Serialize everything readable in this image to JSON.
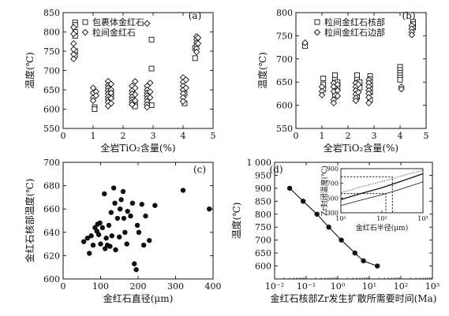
{
  "chart_data": [
    {
      "id": "a",
      "type": "scatter",
      "panel_label": "(a)",
      "xlabel": "全岩TiO₂含量(%)",
      "ylabel": "温度(℃)",
      "xlim": [
        0,
        5
      ],
      "ylim": [
        550,
        850
      ],
      "xticks": [
        0,
        1,
        2,
        3,
        4,
        5
      ],
      "yticks": [
        550,
        600,
        650,
        700,
        750,
        800,
        850
      ],
      "legend_position": "top-left",
      "series": [
        {
          "name": "包裹体金红石",
          "marker": "square",
          "points": [
            [
              0.4,
              825
            ],
            [
              0.4,
              818
            ],
            [
              0.4,
              800
            ],
            [
              0.4,
              790
            ],
            [
              0.4,
              750
            ],
            [
              0.4,
              740
            ],
            [
              1.05,
              605
            ],
            [
              1.05,
              600
            ],
            [
              1.6,
              640
            ],
            [
              1.6,
              632
            ],
            [
              2.4,
              612
            ],
            [
              2.4,
              607
            ],
            [
              2.95,
              780
            ],
            [
              2.95,
              705
            ],
            [
              2.95,
              610
            ],
            [
              4.05,
              640
            ],
            [
              4.05,
              615
            ],
            [
              4.4,
              758
            ],
            [
              4.4,
              732
            ]
          ]
        },
        {
          "name": "粒间金红石",
          "marker": "diamond",
          "points": [
            [
              0.35,
              812
            ],
            [
              0.35,
              795
            ],
            [
              0.35,
              770
            ],
            [
              0.35,
              755
            ],
            [
              0.35,
              742
            ],
            [
              0.35,
              730
            ],
            [
              1.0,
              655
            ],
            [
              1.0,
              642
            ],
            [
              1.0,
              630
            ],
            [
              1.0,
              622
            ],
            [
              1.1,
              645
            ],
            [
              1.1,
              635
            ],
            [
              1.5,
              672
            ],
            [
              1.5,
              662
            ],
            [
              1.5,
              655
            ],
            [
              1.5,
              648
            ],
            [
              1.5,
              640
            ],
            [
              1.5,
              632
            ],
            [
              1.5,
              625
            ],
            [
              1.5,
              618
            ],
            [
              1.5,
              608
            ],
            [
              1.6,
              665
            ],
            [
              1.6,
              650
            ],
            [
              1.6,
              642
            ],
            [
              1.6,
              628
            ],
            [
              1.6,
              615
            ],
            [
              2.3,
              660
            ],
            [
              2.3,
              648
            ],
            [
              2.3,
              640
            ],
            [
              2.3,
              632
            ],
            [
              2.3,
              625
            ],
            [
              2.3,
              618
            ],
            [
              2.3,
              612
            ],
            [
              2.4,
              672
            ],
            [
              2.4,
              655
            ],
            [
              2.4,
              638
            ],
            [
              2.4,
              622
            ],
            [
              2.8,
              822
            ],
            [
              2.8,
              660
            ],
            [
              2.8,
              650
            ],
            [
              2.8,
              642
            ],
            [
              2.8,
              635
            ],
            [
              2.8,
              628
            ],
            [
              2.8,
              620
            ],
            [
              2.8,
              612
            ],
            [
              2.8,
              605
            ],
            [
              2.9,
              668
            ],
            [
              2.9,
              645
            ],
            [
              2.9,
              630
            ],
            [
              4.0,
              682
            ],
            [
              4.0,
              670
            ],
            [
              4.0,
              660
            ],
            [
              4.0,
              650
            ],
            [
              4.0,
              640
            ],
            [
              4.0,
              630
            ],
            [
              4.0,
              620
            ],
            [
              4.1,
              676
            ],
            [
              4.1,
              655
            ],
            [
              4.45,
              788
            ],
            [
              4.45,
              780
            ],
            [
              4.45,
              772
            ],
            [
              4.45,
              765
            ],
            [
              4.45,
              757
            ],
            [
              4.45,
              748
            ],
            [
              4.5,
              785
            ],
            [
              4.5,
              770
            ]
          ]
        }
      ]
    },
    {
      "id": "b",
      "type": "scatter",
      "panel_label": "(b)",
      "xlabel": "全岩TiO₂含量(%)",
      "ylabel": "温度(℃)",
      "xlim": [
        0,
        5
      ],
      "ylim": [
        550,
        800
      ],
      "xticks": [
        0,
        1,
        2,
        3,
        4,
        5
      ],
      "yticks": [
        550,
        600,
        650,
        700,
        750,
        800
      ],
      "legend_position": "top-left",
      "series": [
        {
          "name": "粒间金红石核部",
          "marker": "square",
          "points": [
            [
              0.35,
              728
            ],
            [
              1.05,
              658
            ],
            [
              1.05,
              645
            ],
            [
              1.05,
              635
            ],
            [
              1.5,
              665
            ],
            [
              1.5,
              655
            ],
            [
              1.5,
              645
            ],
            [
              1.5,
              637
            ],
            [
              1.5,
              630
            ],
            [
              1.5,
              622
            ],
            [
              1.6,
              650
            ],
            [
              1.6,
              640
            ],
            [
              2.35,
              665
            ],
            [
              2.35,
              655
            ],
            [
              2.35,
              648
            ],
            [
              2.35,
              640
            ],
            [
              2.35,
              632
            ],
            [
              2.35,
              625
            ],
            [
              2.35,
              618
            ],
            [
              2.45,
              650
            ],
            [
              2.45,
              638
            ],
            [
              2.85,
              663
            ],
            [
              2.85,
              656
            ],
            [
              2.85,
              650
            ],
            [
              2.85,
              643
            ],
            [
              2.85,
              636
            ],
            [
              2.85,
              628
            ],
            [
              2.85,
              612
            ],
            [
              4.0,
              683
            ],
            [
              4.0,
              676
            ],
            [
              4.0,
              670
            ],
            [
              4.0,
              665
            ],
            [
              4.0,
              660
            ],
            [
              4.0,
              655
            ],
            [
              4.5,
              780
            ],
            [
              4.5,
              775
            ],
            [
              4.5,
              768
            ]
          ]
        },
        {
          "name": "粒间金红石边部",
          "marker": "diamond",
          "points": [
            [
              0.35,
              735
            ],
            [
              1.0,
              640
            ],
            [
              1.0,
              630
            ],
            [
              1.0,
              622
            ],
            [
              1.45,
              648
            ],
            [
              1.45,
              640
            ],
            [
              1.45,
              630
            ],
            [
              1.45,
              612
            ],
            [
              1.45,
              605
            ],
            [
              1.6,
              645
            ],
            [
              1.6,
              632
            ],
            [
              1.6,
              620
            ],
            [
              2.3,
              648
            ],
            [
              2.3,
              640
            ],
            [
              2.3,
              632
            ],
            [
              2.3,
              624
            ],
            [
              2.3,
              616
            ],
            [
              2.3,
              610
            ],
            [
              2.4,
              645
            ],
            [
              2.4,
              628
            ],
            [
              2.8,
              655
            ],
            [
              2.8,
              648
            ],
            [
              2.8,
              640
            ],
            [
              2.8,
              632
            ],
            [
              2.8,
              625
            ],
            [
              2.8,
              617
            ],
            [
              2.8,
              605
            ],
            [
              4.05,
              640
            ],
            [
              4.05,
              635
            ],
            [
              4.45,
              772
            ],
            [
              4.45,
              765
            ],
            [
              4.45,
              758
            ],
            [
              4.45,
              752
            ]
          ]
        }
      ]
    },
    {
      "id": "c",
      "type": "scatter",
      "panel_label": "(c)",
      "xlabel": "金红石直径(μm)",
      "ylabel": "金红石核部温度(℃)",
      "xlim": [
        0,
        400
      ],
      "ylim": [
        600,
        700
      ],
      "xticks": [
        0,
        100,
        200,
        300,
        400
      ],
      "yticks": [
        600,
        620,
        640,
        660,
        680,
        700
      ],
      "series": [
        {
          "name": "",
          "marker": "circle",
          "points": [
            [
              55,
              632
            ],
            [
              65,
              635
            ],
            [
              70,
              622
            ],
            [
              75,
              637
            ],
            [
              80,
              629
            ],
            [
              85,
              644
            ],
            [
              90,
              641
            ],
            [
              92,
              647
            ],
            [
              95,
              638
            ],
            [
              98,
              648
            ],
            [
              100,
              630
            ],
            [
              105,
              644
            ],
            [
              110,
              673
            ],
            [
              112,
              626
            ],
            [
              115,
              635
            ],
            [
              118,
              629
            ],
            [
              122,
              646
            ],
            [
              125,
              628
            ],
            [
              128,
              657
            ],
            [
              130,
              637
            ],
            [
              135,
              678
            ],
            [
              138,
              665
            ],
            [
              140,
              625
            ],
            [
              145,
              652
            ],
            [
              150,
              636
            ],
            [
              152,
              660
            ],
            [
              155,
              668
            ],
            [
              160,
              675
            ],
            [
              162,
              652
            ],
            [
              165,
              640
            ],
            [
              170,
              630
            ],
            [
              172,
              658
            ],
            [
              180,
              654
            ],
            [
              185,
              665
            ],
            [
              190,
              613
            ],
            [
              195,
              608
            ],
            [
              198,
              646
            ],
            [
              202,
              640
            ],
            [
              210,
              664
            ],
            [
              215,
              629
            ],
            [
              220,
              654
            ],
            [
              230,
              633
            ],
            [
              245,
              663
            ],
            [
              320,
              676
            ],
            [
              390,
              660
            ]
          ]
        }
      ]
    },
    {
      "id": "d",
      "type": "line",
      "panel_label": "(d)",
      "xlabel": "金红石核部Zr发生扩散所需要时间(Ma)",
      "ylabel": "温度(℃)",
      "xscale": "log",
      "xlim": [
        0.01,
        1000
      ],
      "ylim": [
        550,
        1000
      ],
      "xticks": [
        0.01,
        0.1,
        1,
        10,
        100,
        1000
      ],
      "xtick_labels": [
        "10⁻²",
        "10⁻¹",
        "10⁰",
        "10¹",
        "10²",
        "10³"
      ],
      "yticks": [
        550,
        600,
        650,
        700,
        750,
        800,
        850,
        900,
        950,
        1000
      ],
      "ytick_labels": [
        "",
        "600",
        "650",
        "700",
        "750",
        "800",
        "850",
        "900",
        "950",
        "1 000"
      ],
      "series": [
        {
          "name": "",
          "marker": "circle",
          "x": [
            0.03,
            0.08,
            0.22,
            0.52,
            1.3,
            3.5,
            6.5,
            18
          ],
          "y": [
            900,
            850,
            800,
            750,
            700,
            650,
            620,
            600
          ]
        }
      ],
      "inset": {
        "type": "line",
        "xlabel": "金红石半径(μm)",
        "ylabel": "Zr封闭温度(℃)",
        "xscale": "log",
        "xlim": [
          10,
          1000
        ],
        "ylim": [
          300,
          900
        ],
        "xticks": [
          10,
          100,
          1000
        ],
        "xtick_labels": [
          "10¹",
          "10²",
          "10³"
        ],
        "yticks": [
          300,
          500,
          700,
          900
        ],
        "series": [
          {
            "name": "",
            "style": "dotted",
            "x": [
              10,
              30,
              100,
              300,
              1000
            ],
            "y": [
              570,
              650,
              725,
              800,
              880
            ]
          },
          {
            "name": "",
            "style": "solid",
            "x": [
              10,
              30,
              100,
              300,
              1000
            ],
            "y": [
              480,
              560,
              640,
              730,
              830
            ]
          },
          {
            "name": "",
            "style": "solid-thin",
            "x": [
              10,
              30,
              100,
              300,
              1000
            ],
            "y": [
              400,
              470,
              545,
              625,
              720
            ]
          }
        ],
        "reference_lines": [
          {
            "x": 180,
            "y": 790
          },
          {
            "x": 125,
            "y": 560
          }
        ]
      }
    }
  ]
}
